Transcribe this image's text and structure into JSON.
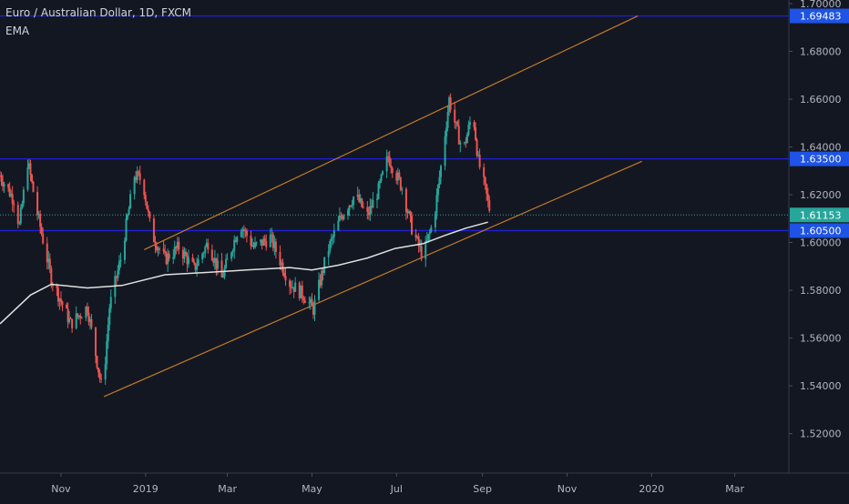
{
  "header": {
    "title": "Euro / Australian Dollar, 1D, FXCM",
    "indicator": "EMA"
  },
  "colors": {
    "background": "#131722",
    "candle_up": "#26a69a",
    "candle_down": "#ef5350",
    "ema": "#e0e0e0",
    "horizontal_level": "#1f1fd6",
    "channel": "#c07a2a",
    "axis_text": "#b2b5be",
    "price_label_bg": "#1e53e5",
    "current_price_bg": "#26a69a"
  },
  "chart_data": {
    "type": "candlestick",
    "symbol": "EURAUD",
    "timeframe": "1D",
    "xlim": [
      "2018-09-18",
      "2020-04-09"
    ],
    "ylim": [
      1.5035,
      1.7015
    ],
    "x_ticks": [
      {
        "label": "Nov",
        "date": "2018-11-01"
      },
      {
        "label": "2019",
        "date": "2019-01-01"
      },
      {
        "label": "Mar",
        "date": "2019-03-01"
      },
      {
        "label": "May",
        "date": "2019-05-01"
      },
      {
        "label": "Jul",
        "date": "2019-07-01"
      },
      {
        "label": "Sep",
        "date": "2019-09-01"
      },
      {
        "label": "Nov",
        "date": "2019-11-01"
      },
      {
        "label": "2020",
        "date": "2020-01-01"
      },
      {
        "label": "Mar",
        "date": "2020-03-01"
      }
    ],
    "y_ticks": [
      "1.70000",
      "1.68000",
      "1.66000",
      "1.64000",
      "1.62000",
      "1.60000",
      "1.58000",
      "1.56000",
      "1.54000",
      "1.52000"
    ],
    "price_labels": [
      {
        "value": 1.69483,
        "label": "1.69483",
        "kind": "level"
      },
      {
        "value": 1.635,
        "label": "1.63500",
        "kind": "level"
      },
      {
        "value": 1.61153,
        "label": "1.61153",
        "kind": "current"
      },
      {
        "value": 1.605,
        "label": "1.60500",
        "kind": "level"
      }
    ],
    "horizontal_levels": [
      1.69483,
      1.635,
      1.605
    ],
    "current_price": 1.61153,
    "channel": [
      {
        "name": "upper",
        "start": [
          "2018-12-31",
          1.597
        ],
        "end": [
          "2019-12-22",
          1.6948
        ]
      },
      {
        "name": "lower",
        "start": [
          "2018-12-02",
          1.5355
        ],
        "end": [
          "2019-12-25",
          1.634
        ]
      }
    ],
    "ema": [
      [
        "2018-09-18",
        1.566
      ],
      [
        "2018-10-10",
        1.578
      ],
      [
        "2018-10-25",
        1.5825
      ],
      [
        "2018-11-20",
        1.581
      ],
      [
        "2018-12-15",
        1.582
      ],
      [
        "2019-01-15",
        1.5865
      ],
      [
        "2019-02-15",
        1.5875
      ],
      [
        "2019-03-15",
        1.5885
      ],
      [
        "2019-04-15",
        1.5895
      ],
      [
        "2019-05-01",
        1.5885
      ],
      [
        "2019-05-20",
        1.5905
      ],
      [
        "2019-06-10",
        1.5935
      ],
      [
        "2019-06-30",
        1.5975
      ],
      [
        "2019-07-20",
        1.5995
      ],
      [
        "2019-08-05",
        1.603
      ],
      [
        "2019-08-20",
        1.606
      ],
      [
        "2019-09-05",
        1.6085
      ]
    ],
    "price_path": [
      [
        "2018-09-18",
        1.628
      ],
      [
        "2018-09-28",
        1.618
      ],
      [
        "2018-10-02",
        1.607
      ],
      [
        "2018-10-08",
        1.634
      ],
      [
        "2018-10-15",
        1.612
      ],
      [
        "2018-10-25",
        1.585
      ],
      [
        "2018-11-08",
        1.566
      ],
      [
        "2018-11-20",
        1.573
      ],
      [
        "2018-12-01",
        1.537
      ],
      [
        "2018-12-06",
        1.573
      ],
      [
        "2018-12-14",
        1.593
      ],
      [
        "2018-12-24",
        1.628
      ],
      [
        "2018-12-30",
        1.626
      ],
      [
        "2019-01-05",
        1.604
      ],
      [
        "2019-01-15",
        1.593
      ],
      [
        "2019-01-25",
        1.598
      ],
      [
        "2019-02-05",
        1.589
      ],
      [
        "2019-02-15",
        1.6
      ],
      [
        "2019-02-25",
        1.585
      ],
      [
        "2019-03-10",
        1.608
      ],
      [
        "2019-03-20",
        1.598
      ],
      [
        "2019-04-01",
        1.602
      ],
      [
        "2019-04-15",
        1.583
      ],
      [
        "2019-04-25",
        1.578
      ],
      [
        "2019-05-02",
        1.572
      ],
      [
        "2019-05-12",
        1.596
      ],
      [
        "2019-05-22",
        1.611
      ],
      [
        "2019-06-01",
        1.62
      ],
      [
        "2019-06-10",
        1.611
      ],
      [
        "2019-06-18",
        1.622
      ],
      [
        "2019-06-25",
        1.636
      ],
      [
        "2019-07-05",
        1.623
      ],
      [
        "2019-07-12",
        1.606
      ],
      [
        "2019-07-20",
        1.594
      ],
      [
        "2019-07-28",
        1.61
      ],
      [
        "2019-08-03",
        1.636
      ],
      [
        "2019-08-08",
        1.66
      ],
      [
        "2019-08-13",
        1.648
      ],
      [
        "2019-08-18",
        1.638
      ],
      [
        "2019-08-25",
        1.655
      ],
      [
        "2019-08-29",
        1.634
      ],
      [
        "2019-09-03",
        1.622
      ],
      [
        "2019-09-07",
        1.6115
      ]
    ]
  }
}
